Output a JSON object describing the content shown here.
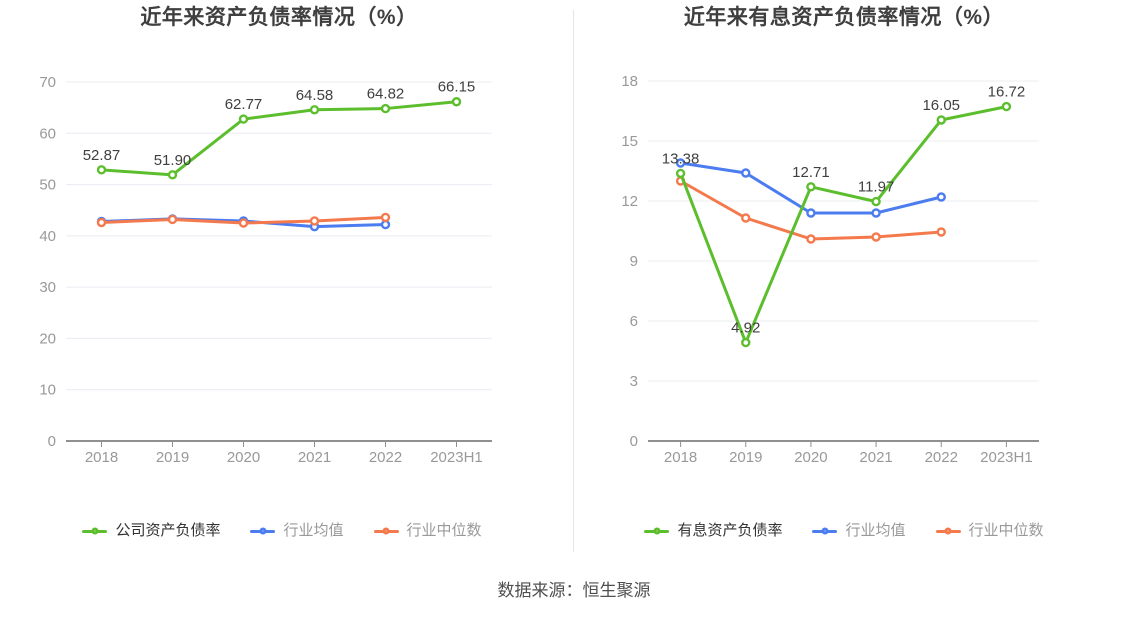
{
  "source_note": "数据来源：恒生聚源",
  "colors": {
    "company_line": "#5cbe2d",
    "industry_avg_line": "#4b7cf0",
    "industry_median_line": "#f4794d",
    "grid_line": "#e9ecf2",
    "axis_line": "#909090",
    "axis_label_text": "#999999",
    "data_label_text": "#404040",
    "title_text": "#3f3f3f",
    "legend_primary_text": "#333333",
    "legend_secondary_text": "#999999",
    "caption_text": "#4f4f4f",
    "marker_fill": "#ffffff"
  },
  "chart_data": [
    {
      "type": "line",
      "title": "近年来资产负债率情况（%）",
      "categories": [
        "2018",
        "2019",
        "2020",
        "2021",
        "2022",
        "2023H1"
      ],
      "ylim": [
        0,
        70
      ],
      "y_ticks": [
        0,
        10,
        20,
        30,
        40,
        50,
        60,
        70
      ],
      "grid": true,
      "legend_position": "bottom",
      "series": [
        {
          "name": "公司资产负债率",
          "color": "#5cbe2d",
          "values": [
            52.87,
            51.9,
            62.77,
            64.58,
            64.82,
            66.15
          ],
          "labels": [
            "52.87",
            "51.90",
            "62.77",
            "64.58",
            "64.82",
            "66.15"
          ]
        },
        {
          "name": "行业均值",
          "color": "#4b7cf0",
          "values": [
            42.8,
            43.3,
            42.9,
            41.8,
            42.2
          ]
        },
        {
          "name": "行业中位数",
          "color": "#f4794d",
          "values": [
            42.6,
            43.2,
            42.5,
            42.9,
            43.6
          ]
        }
      ]
    },
    {
      "type": "line",
      "title": "近年来有息资产负债率情况（%）",
      "categories": [
        "2018",
        "2019",
        "2020",
        "2021",
        "2022",
        "2023H1"
      ],
      "ylim": [
        0,
        18
      ],
      "y_ticks": [
        0,
        3,
        6,
        9,
        12,
        15,
        18
      ],
      "grid": true,
      "legend_position": "bottom",
      "series": [
        {
          "name": "有息资产负债率",
          "color": "#5cbe2d",
          "values": [
            13.38,
            4.92,
            12.71,
            11.97,
            16.05,
            16.72
          ],
          "labels": [
            "13.38",
            "4.92",
            "12.71",
            "11.97",
            "16.05",
            "16.72"
          ]
        },
        {
          "name": "行业均值",
          "color": "#4b7cf0",
          "values": [
            13.9,
            13.4,
            11.4,
            11.4,
            12.2
          ]
        },
        {
          "name": "行业中位数",
          "color": "#f4794d",
          "values": [
            13.0,
            11.15,
            10.1,
            10.2,
            10.45
          ]
        }
      ]
    }
  ]
}
